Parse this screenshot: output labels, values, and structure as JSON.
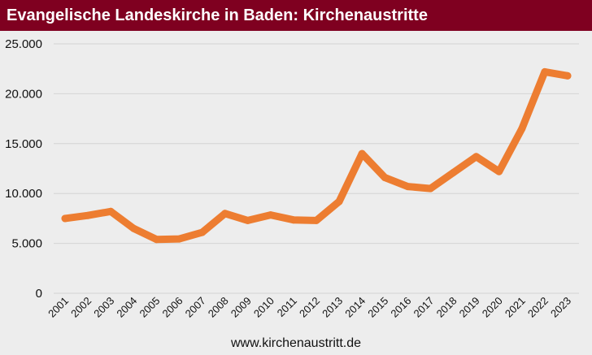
{
  "header": {
    "title": "Evangelische Landeskirche in Baden: Kirchenaustritte"
  },
  "footer": {
    "source": "www.kirchenaustritt.de"
  },
  "colors": {
    "title_bar": "#7f0020",
    "background": "#ededed",
    "line": "#ed7d31",
    "grid": "#d4d4d4"
  },
  "chart_data": {
    "type": "line",
    "title": "Evangelische Landeskirche in Baden: Kirchenaustritte",
    "xlabel": "",
    "ylabel": "",
    "categories": [
      "2001",
      "2002",
      "2003",
      "2004",
      "2005",
      "2006",
      "2007",
      "2008",
      "2009",
      "2010",
      "2011",
      "2012",
      "2013",
      "2014",
      "2015",
      "2016",
      "2017",
      "2018",
      "2019",
      "2020",
      "2021",
      "2022",
      "2023"
    ],
    "series": [
      {
        "values": [
          7500,
          7800,
          8200,
          6500,
          5400,
          5450,
          6100,
          8000,
          7300,
          7850,
          7350,
          7300,
          9200,
          14000,
          11600,
          10700,
          10500,
          12100,
          13700,
          12200,
          16500,
          22200,
          21800
        ]
      }
    ],
    "ylim": [
      0,
      25000
    ],
    "yticks": [
      0,
      5000,
      10000,
      15000,
      20000,
      25000
    ],
    "ytick_labels": [
      "0",
      "5.000",
      "10.000",
      "15.000",
      "20.000",
      "25.000"
    ],
    "grid": true,
    "legend": "none"
  }
}
